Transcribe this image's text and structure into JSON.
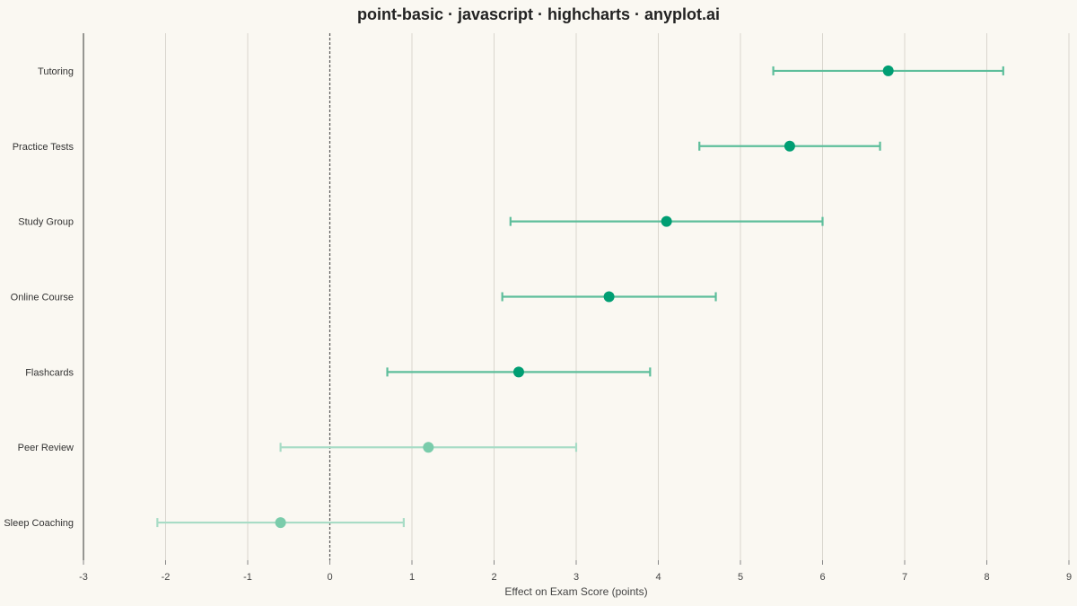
{
  "chart_data": {
    "type": "scatter",
    "title": "point-basic · javascript · highcharts · anyplot.ai",
    "xlabel": "Effect on Exam Score (points)",
    "ylabel": "",
    "xlim": [
      -3,
      9
    ],
    "xticks": [
      -3,
      -2,
      -1,
      0,
      1,
      2,
      3,
      4,
      5,
      6,
      7,
      8,
      9
    ],
    "reference_line": 0,
    "grid": true,
    "colors": {
      "significant": "#009E73",
      "significant_ci": "#5DBE9B",
      "nonsignificant": "#7ACCAB",
      "nonsignificant_ci": "#A8DCC6",
      "grid": "#D9D6CE",
      "reference": "#555555"
    },
    "points": [
      {
        "category": "Tutoring",
        "estimate": 6.8,
        "lower": 5.4,
        "upper": 8.2,
        "significant": true
      },
      {
        "category": "Practice Tests",
        "estimate": 5.6,
        "lower": 4.5,
        "upper": 6.7,
        "significant": true
      },
      {
        "category": "Study Group",
        "estimate": 4.1,
        "lower": 2.2,
        "upper": 6.0,
        "significant": true
      },
      {
        "category": "Online Course",
        "estimate": 3.4,
        "lower": 2.1,
        "upper": 4.7,
        "significant": true
      },
      {
        "category": "Flashcards",
        "estimate": 2.3,
        "lower": 0.7,
        "upper": 3.9,
        "significant": true
      },
      {
        "category": "Peer Review",
        "estimate": 1.2,
        "lower": -0.6,
        "upper": 3.0,
        "significant": false
      },
      {
        "category": "Sleep Coaching",
        "estimate": -0.6,
        "lower": -2.1,
        "upper": 0.9,
        "significant": false
      }
    ]
  }
}
